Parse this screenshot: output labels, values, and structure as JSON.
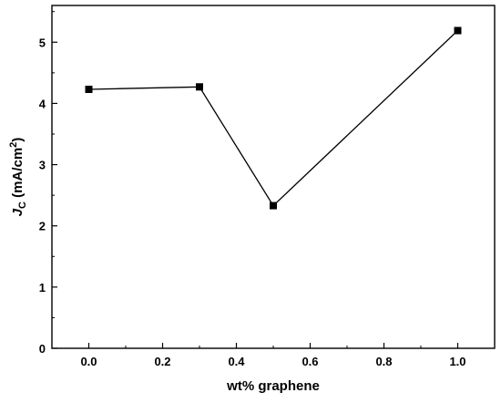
{
  "chart_data": {
    "type": "line",
    "title": "",
    "xlabel": "wt% graphene",
    "ylabel": {
      "symbol": "J",
      "subscript": "C",
      "unit_prefix": " (mA/cm",
      "unit_exp": "2",
      "unit_suffix": ")"
    },
    "xlim": [
      -0.1,
      1.1
    ],
    "ylim": [
      0,
      5.6
    ],
    "xticks": [
      0.0,
      0.2,
      0.4,
      0.6,
      0.8,
      1.0
    ],
    "xtick_labels": [
      "0.0",
      "0.2",
      "0.4",
      "0.6",
      "0.8",
      "1.0"
    ],
    "yticks": [
      0,
      1,
      2,
      3,
      4,
      5
    ],
    "ytick_labels": [
      "0",
      "1",
      "2",
      "3",
      "4",
      "5"
    ],
    "grid": false,
    "legend": "none",
    "marker": "square",
    "color": "#000000",
    "series": [
      {
        "x": [
          0.0,
          0.3,
          0.5,
          1.0
        ],
        "y": [
          4.23,
          4.27,
          2.33,
          5.19
        ]
      }
    ]
  }
}
